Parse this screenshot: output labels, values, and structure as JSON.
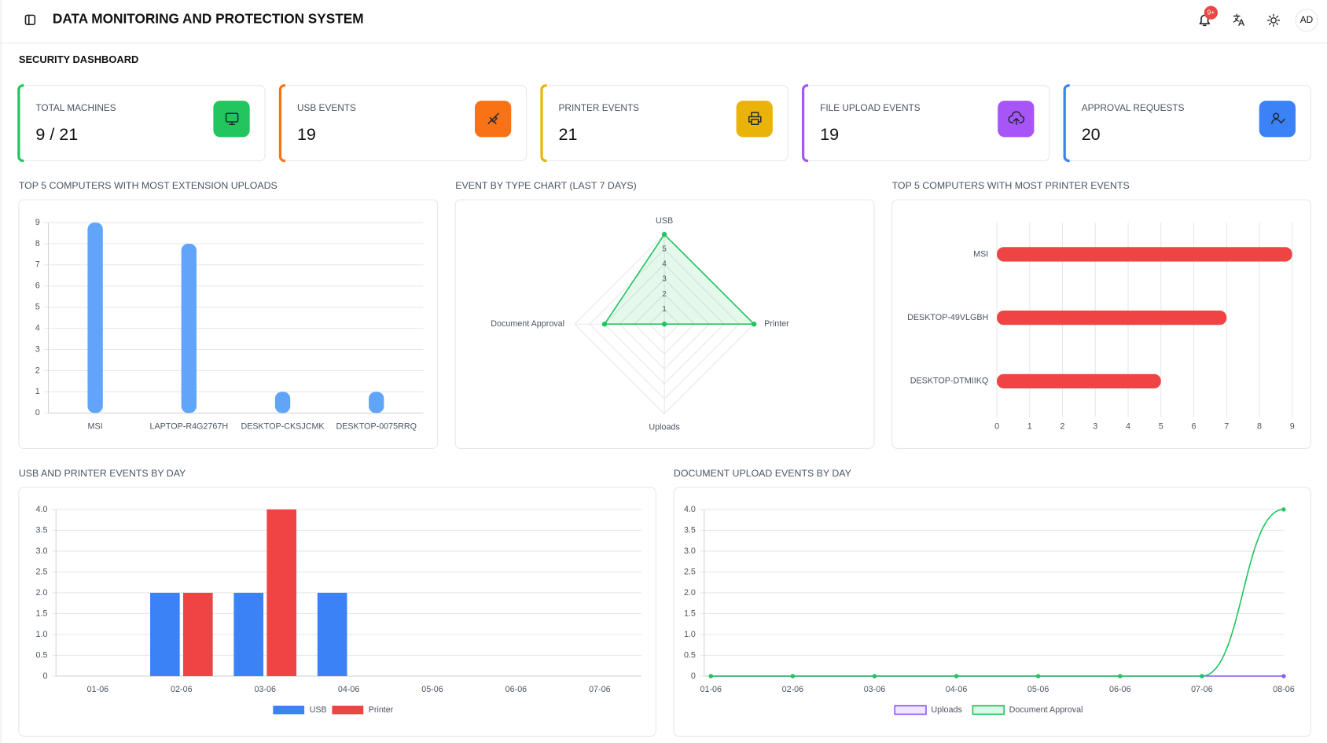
{
  "header": {
    "title": "DATA MONITORING AND PROTECTION SYSTEM",
    "badge": "9+",
    "avatar": "AD"
  },
  "page_title": "SECURITY DASHBOARD",
  "cards": [
    {
      "label": "TOTAL MACHINES",
      "value": "9 / 21",
      "color": "#22c55e"
    },
    {
      "label": "USB EVENTS",
      "value": "19",
      "color": "#f97316"
    },
    {
      "label": "PRINTER EVENTS",
      "value": "21",
      "color": "#eab308"
    },
    {
      "label": "FILE UPLOAD EVENTS",
      "value": "19",
      "color": "#a855f7"
    },
    {
      "label": "APPROVAL REQUESTS",
      "value": "20",
      "color": "#3b82f6"
    }
  ],
  "chart_data": [
    {
      "type": "bar",
      "title": "TOP 5 COMPUTERS WITH MOST EXTENSION UPLOADS",
      "categories": [
        "MSI",
        "LAPTOP-R4G2767H",
        "DESKTOP-CKSJCMK",
        "DESKTOP-0075RRQ"
      ],
      "values": [
        9,
        8,
        1,
        1
      ],
      "color": "#60a5fa",
      "ylim": [
        0,
        9
      ],
      "yticks": [
        0,
        1,
        2,
        3,
        4,
        5,
        6,
        7,
        8,
        9
      ],
      "grid": true
    },
    {
      "type": "radar",
      "title": "EVENT BY TYPE CHART (LAST 7 DAYS)",
      "categories": [
        "USB",
        "Printer",
        "Uploads",
        "Document Approval"
      ],
      "values": [
        6,
        6,
        0,
        4
      ],
      "color": "#22c55e",
      "rlim": [
        0,
        6
      ],
      "rticks": [
        1,
        2,
        3,
        4,
        5
      ],
      "grid": true
    },
    {
      "type": "bar",
      "orientation": "horizontal",
      "title": "TOP 5 COMPUTERS WITH MOST PRINTER EVENTS",
      "categories": [
        "MSI",
        "DESKTOP-49VLGBH",
        "DESKTOP-DTMIIKQ"
      ],
      "values": [
        9,
        7,
        5
      ],
      "color": "#ef4444",
      "xlim": [
        0,
        9
      ],
      "xticks": [
        0,
        1,
        2,
        3,
        4,
        5,
        6,
        7,
        8,
        9
      ],
      "grid": true
    },
    {
      "type": "bar",
      "title": "USB AND PRINTER EVENTS BY DAY",
      "categories": [
        "01-06",
        "02-06",
        "03-06",
        "04-06",
        "05-06",
        "06-06",
        "07-06"
      ],
      "series": [
        {
          "name": "USB",
          "color": "#3b82f6",
          "values": [
            0,
            2,
            2,
            2,
            0,
            0,
            0
          ]
        },
        {
          "name": "Printer",
          "color": "#ef4444",
          "values": [
            0,
            2,
            4,
            0,
            0,
            0,
            0
          ]
        }
      ],
      "ylim": [
        0,
        4
      ],
      "yticks": [
        0,
        0.5,
        {
          "value": 1,
          "label": "1.0"
        },
        1.5,
        {
          "value": 2,
          "label": "2.0"
        },
        2.5,
        {
          "value": 3,
          "label": "3.0"
        },
        3.5,
        {
          "value": 4,
          "label": "4.0"
        }
      ],
      "grid": true,
      "legend": "bottom"
    },
    {
      "type": "line",
      "title": "DOCUMENT UPLOAD EVENTS BY DAY",
      "categories": [
        "01-06",
        "02-06",
        "03-06",
        "04-06",
        "05-06",
        "06-06",
        "07-06",
        "08-06"
      ],
      "series": [
        {
          "name": "Uploads",
          "color": "#8b5cf6",
          "values": [
            0,
            0,
            0,
            0,
            0,
            0,
            0,
            0
          ]
        },
        {
          "name": "Document Approval",
          "color": "#22c55e",
          "values": [
            0,
            0,
            0,
            0,
            0,
            0,
            0,
            4
          ]
        }
      ],
      "ylim": [
        0,
        4
      ],
      "yticks": [
        0,
        0.5,
        {
          "value": 1,
          "label": "1.0"
        },
        1.5,
        {
          "value": 2,
          "label": "2.0"
        },
        2.5,
        {
          "value": 3,
          "label": "3.0"
        },
        3.5,
        {
          "value": 4,
          "label": "4.0"
        }
      ],
      "grid": true,
      "smooth": true,
      "legend": "bottom"
    }
  ]
}
